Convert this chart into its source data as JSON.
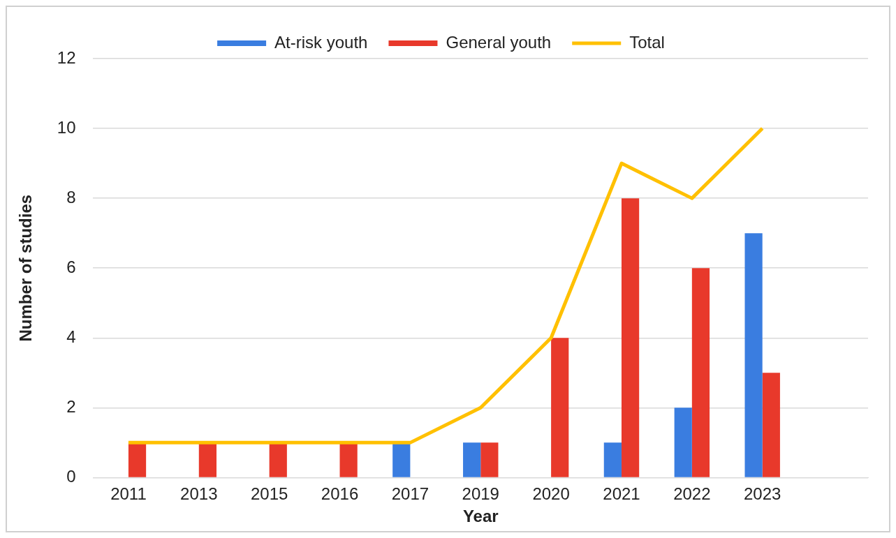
{
  "chart_data": {
    "type": "bar",
    "xlabel": "Year",
    "ylabel": "Number of studies",
    "categories": [
      "2011",
      "2013",
      "2015",
      "2016",
      "2017",
      "2019",
      "2020",
      "2021",
      "2022",
      "2023",
      null
    ],
    "series": [
      {
        "name": "At-risk youth",
        "color": "#3a7de0",
        "values": [
          0,
          0,
          0,
          0,
          1,
          1,
          0,
          1,
          2,
          7,
          null
        ]
      },
      {
        "name": "General youth",
        "color": "#e8392b",
        "values": [
          1,
          1,
          1,
          1,
          0,
          1,
          4,
          8,
          6,
          3,
          null
        ]
      },
      {
        "name": "Total",
        "type": "line",
        "color": "#ffc000",
        "values": [
          1,
          1,
          1,
          1,
          1,
          2,
          4,
          9,
          8,
          10,
          null
        ]
      }
    ],
    "ylim": [
      0,
      12
    ],
    "yticks": [
      0,
      2,
      4,
      6,
      8,
      10,
      12
    ],
    "grid": "y",
    "legend": "top",
    "marker": "none"
  }
}
